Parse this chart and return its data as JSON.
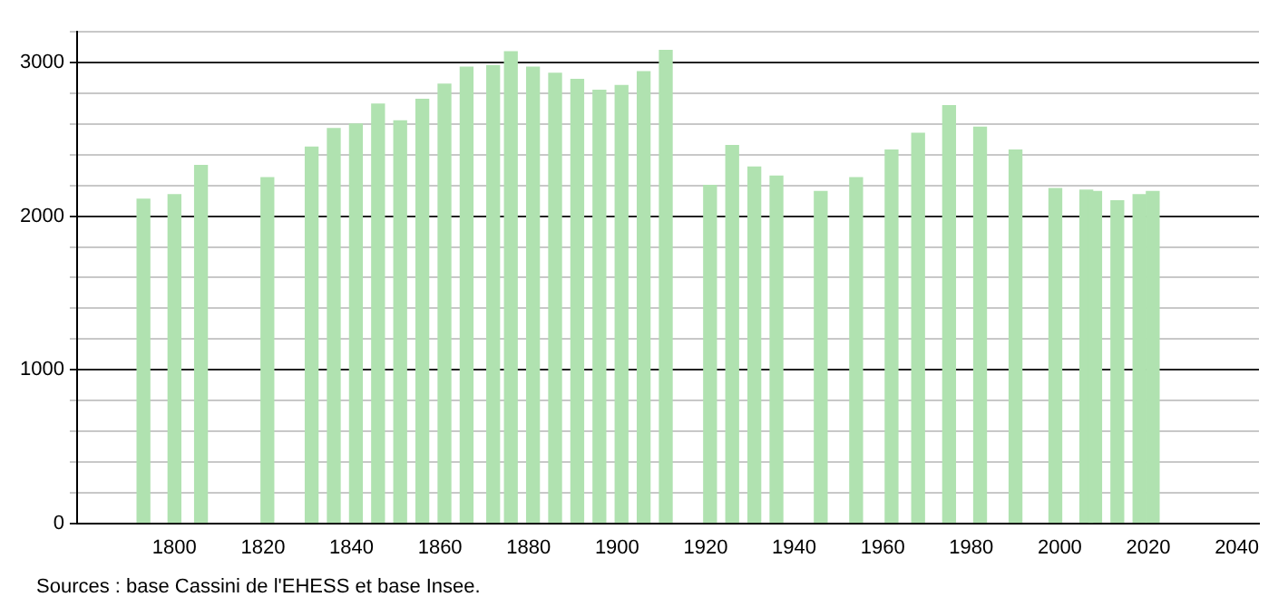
{
  "chart_data": {
    "type": "bar",
    "x": [
      1793,
      1800,
      1806,
      1821,
      1831,
      1836,
      1841,
      1846,
      1851,
      1856,
      1861,
      1866,
      1872,
      1876,
      1881,
      1886,
      1891,
      1896,
      1901,
      1906,
      1911,
      1921,
      1926,
      1931,
      1936,
      1946,
      1954,
      1962,
      1968,
      1975,
      1982,
      1990,
      1999,
      2006,
      2008,
      2013,
      2018,
      2021
    ],
    "values": [
      2110,
      2140,
      2330,
      2250,
      2450,
      2570,
      2600,
      2730,
      2620,
      2760,
      2860,
      2970,
      2980,
      3070,
      2970,
      2930,
      2890,
      2820,
      2850,
      2940,
      3080,
      2200,
      2460,
      2320,
      2260,
      2160,
      2250,
      2430,
      2540,
      2720,
      2580,
      2430,
      2180,
      2170,
      2160,
      2100,
      2140,
      2160
    ],
    "color": "#b0e2b0",
    "xlim": [
      1778,
      2045
    ],
    "xticks": [
      1800,
      1820,
      1840,
      1860,
      1880,
      1900,
      1920,
      1940,
      1960,
      1980,
      2000,
      2020,
      2040
    ],
    "ylim": [
      0,
      3200
    ],
    "yticks": [
      0,
      {
        "value": 200,
        "label": null
      },
      {
        "value": 400,
        "label": null
      },
      {
        "value": 600,
        "label": null
      },
      {
        "value": 800,
        "label": null
      },
      1000,
      {
        "value": 1200,
        "label": null
      },
      {
        "value": 1400,
        "label": null
      },
      {
        "value": 1600,
        "label": null
      },
      {
        "value": 1800,
        "label": null
      },
      2000,
      {
        "value": 2200,
        "label": null
      },
      {
        "value": 2400,
        "label": null
      },
      {
        "value": 2600,
        "label": null
      },
      {
        "value": 2800,
        "label": null
      },
      3000,
      {
        "value": 3200,
        "label": null
      }
    ],
    "grid": "y",
    "annotations": [
      "Sources : base Cassini de l'EHESS et base Insee."
    ]
  }
}
